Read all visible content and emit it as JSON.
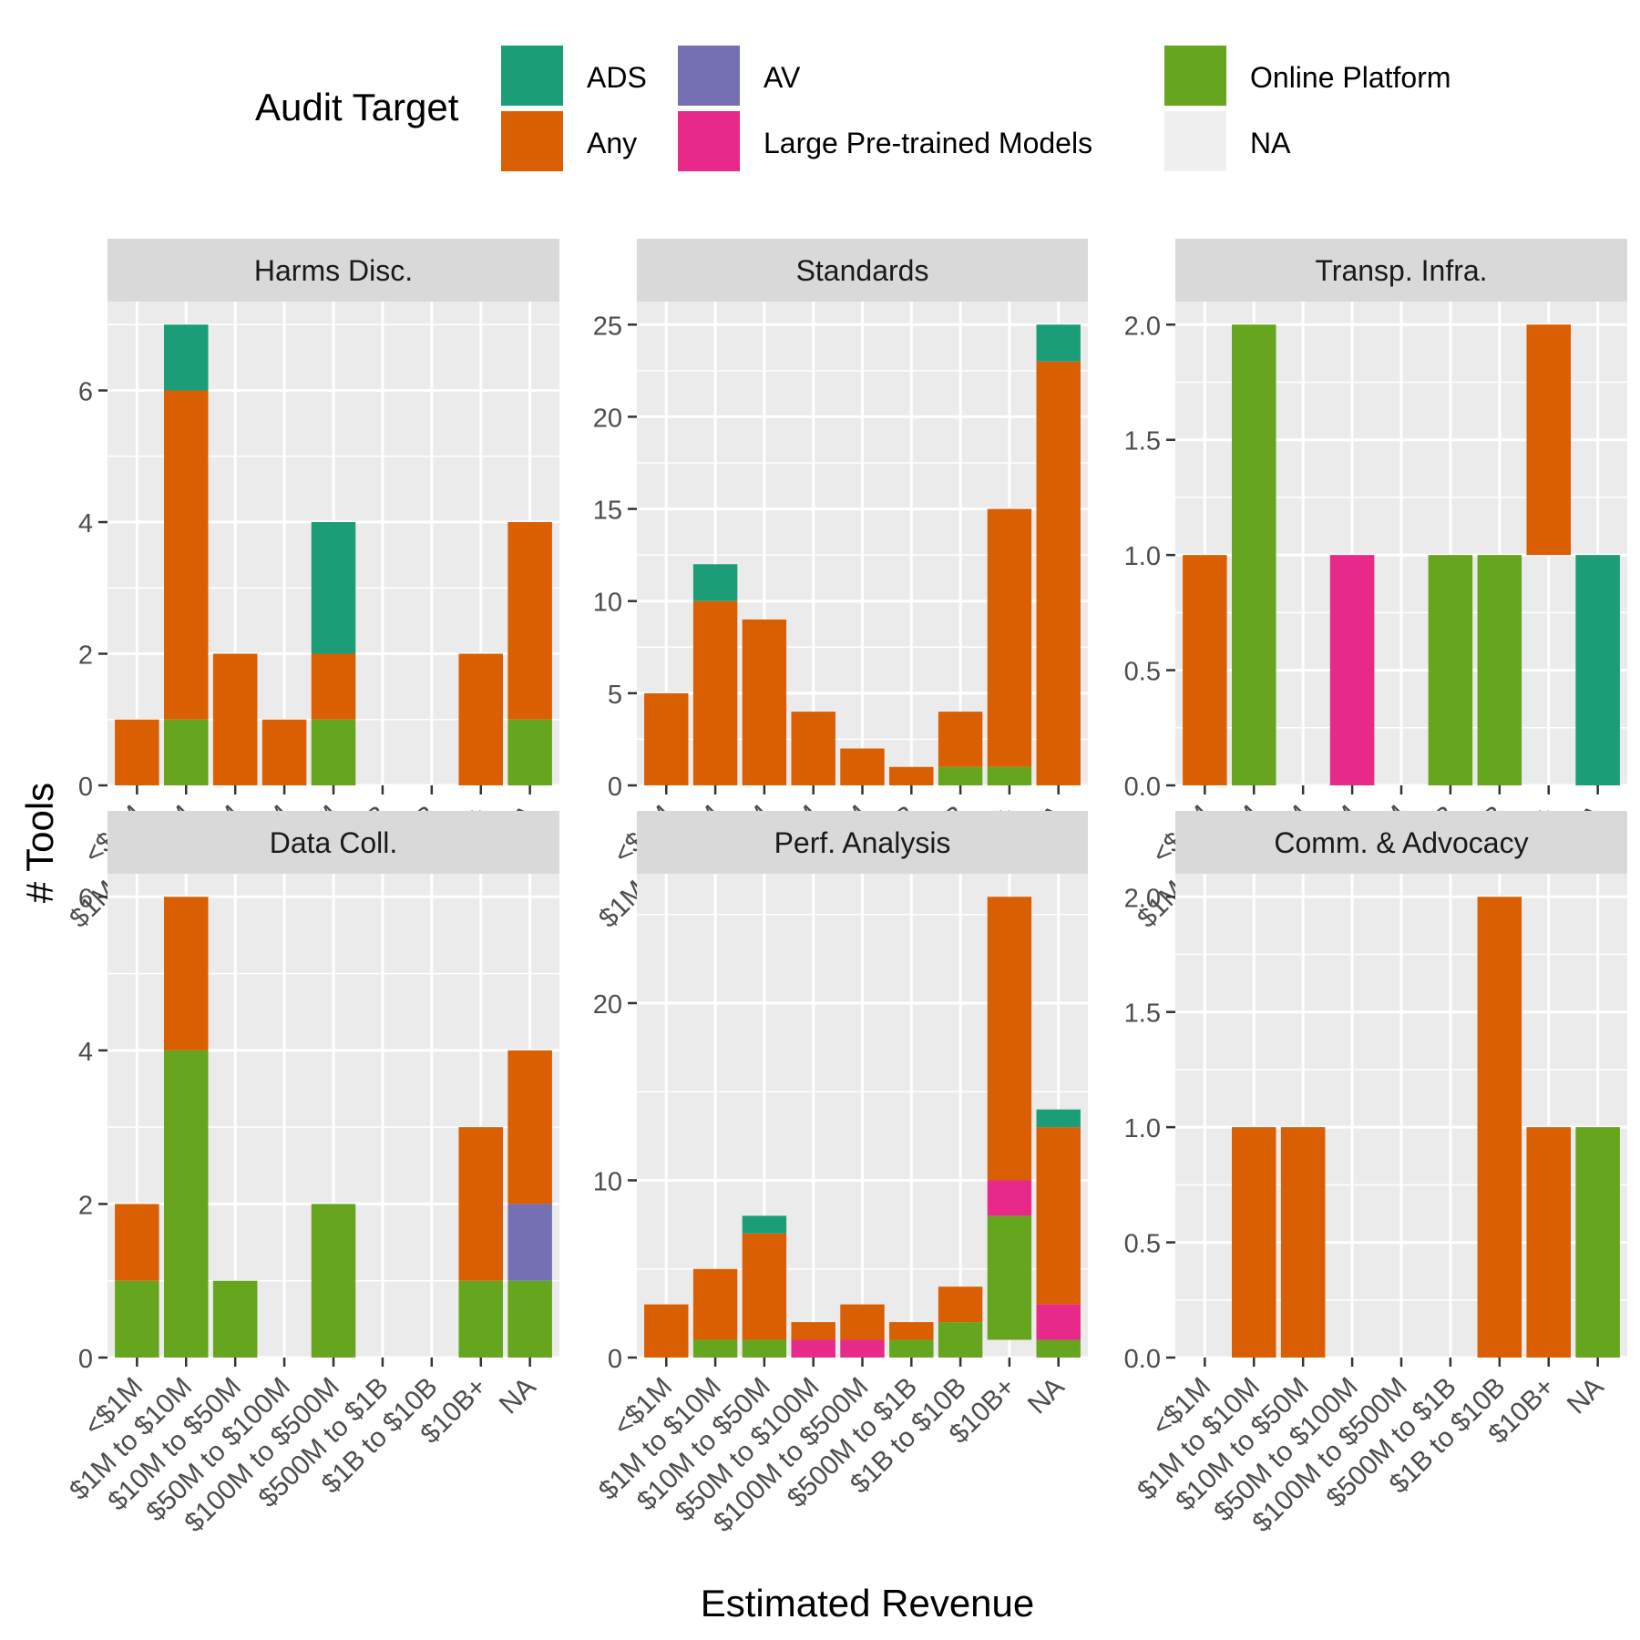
{
  "legend": {
    "title": "Audit Target",
    "entries": [
      {
        "key": "ADS",
        "label": "ADS",
        "color": "#1b9e77"
      },
      {
        "key": "Any",
        "label": "Any",
        "color": "#d95f02"
      },
      {
        "key": "AV",
        "label": "AV",
        "color": "#7570b3"
      },
      {
        "key": "LPM",
        "label": "Large Pre-trained Models",
        "color": "#e7298a"
      },
      {
        "key": "OP",
        "label": "Online Platform",
        "color": "#66a61e"
      },
      {
        "key": "NA",
        "label": "NA",
        "color": "#f0f0f0"
      }
    ]
  },
  "chart_data": {
    "type": "bar",
    "stacked": true,
    "xlabel": "Estimated Revenue",
    "ylabel": "# Tools",
    "grid": true,
    "legend_position": "top",
    "categories": [
      "<$1M",
      "$1M to $10M",
      "$10M to $50M",
      "$50M to $100M",
      "$100M to $500M",
      "$500M to $1B",
      "$1B to $10B",
      "$10B+",
      "NA"
    ],
    "series_order": [
      "OP",
      "LPM",
      "AV",
      "Any",
      "ADS"
    ],
    "panels": [
      {
        "title": "Harms Disc.",
        "ylim": [
          0,
          7.35
        ],
        "yticks": [
          0,
          2,
          4,
          6
        ],
        "ytick_labels": [
          "0",
          "2",
          "4",
          "6"
        ],
        "values": {
          "OP": [
            0,
            1,
            0,
            0,
            1,
            0,
            0,
            0,
            1
          ],
          "LPM": [
            0,
            0,
            0,
            0,
            0,
            0,
            0,
            0,
            0
          ],
          "AV": [
            0,
            0,
            0,
            0,
            0,
            0,
            0,
            0,
            0
          ],
          "Any": [
            1,
            5,
            2,
            1,
            1,
            0,
            0,
            2,
            3
          ],
          "ADS": [
            0,
            1,
            0,
            0,
            2,
            0,
            0,
            0,
            0
          ]
        }
      },
      {
        "title": "Standards",
        "ylim": [
          0,
          26.25
        ],
        "yticks": [
          0,
          5,
          10,
          15,
          20,
          25
        ],
        "ytick_labels": [
          "0",
          "5",
          "10",
          "15",
          "20",
          "25"
        ],
        "values": {
          "OP": [
            0,
            0,
            0,
            0,
            0,
            0,
            1,
            1,
            0
          ],
          "LPM": [
            0,
            0,
            0,
            0,
            0,
            0,
            0,
            0,
            0
          ],
          "AV": [
            0,
            0,
            0,
            0,
            0,
            0,
            0,
            0,
            0
          ],
          "Any": [
            5,
            10,
            9,
            4,
            2,
            1,
            3,
            14,
            23
          ],
          "ADS": [
            0,
            2,
            0,
            0,
            0,
            0,
            0,
            0,
            2
          ]
        }
      },
      {
        "title": "Transp. Infra.",
        "ylim": [
          0,
          2.1
        ],
        "yticks": [
          0,
          0.5,
          1,
          1.5,
          2
        ],
        "ytick_labels": [
          "0.0",
          "0.5",
          "1.0",
          "1.5",
          "2.0"
        ],
        "values": {
          "OP": [
            0,
            2,
            0,
            0,
            0,
            1,
            1,
            0,
            0
          ],
          "LPM": [
            0,
            0,
            0,
            1,
            0,
            0,
            0,
            0,
            0
          ],
          "AV": [
            0,
            0,
            0,
            0,
            0,
            0,
            0,
            0,
            0
          ],
          "Any": [
            1,
            0,
            0,
            0,
            0,
            0,
            0,
            1,
            0
          ],
          "ADS": [
            0,
            0,
            0,
            0,
            0,
            0,
            0,
            0,
            1
          ]
        },
        "bases": [
          0,
          0,
          0,
          0,
          0,
          0,
          0,
          1,
          0
        ]
      },
      {
        "title": "Data Coll.",
        "ylim": [
          0,
          6.3
        ],
        "yticks": [
          0,
          2,
          4,
          6
        ],
        "ytick_labels": [
          "0",
          "2",
          "4",
          "6"
        ],
        "values": {
          "OP": [
            1,
            4,
            1,
            0,
            2,
            0,
            0,
            1,
            1
          ],
          "LPM": [
            0,
            0,
            0,
            0,
            0,
            0,
            0,
            0,
            0
          ],
          "AV": [
            0,
            0,
            0,
            0,
            0,
            0,
            0,
            0,
            1
          ],
          "Any": [
            1,
            2,
            0,
            0,
            0,
            0,
            0,
            2,
            2
          ],
          "ADS": [
            0,
            0,
            0,
            0,
            0,
            0,
            0,
            0,
            0
          ]
        }
      },
      {
        "title": "Perf. Analysis",
        "ylim": [
          0,
          27.3
        ],
        "yticks": [
          0,
          10,
          20
        ],
        "ytick_labels": [
          "0",
          "10",
          "20"
        ],
        "values": {
          "OP": [
            0,
            1,
            1,
            0,
            0,
            1,
            2,
            7,
            1
          ],
          "LPM": [
            0,
            0,
            0,
            1,
            1,
            0,
            0,
            2,
            2
          ],
          "AV": [
            0,
            0,
            0,
            0,
            0,
            0,
            0,
            0,
            0
          ],
          "Any": [
            3,
            4,
            6,
            1,
            2,
            1,
            2,
            16,
            10
          ],
          "ADS": [
            0,
            0,
            1,
            0,
            0,
            0,
            0,
            0,
            1
          ]
        },
        "bases": [
          0,
          0,
          0,
          0,
          0,
          0,
          0,
          1,
          0
        ]
      },
      {
        "title": "Comm. & Advocacy",
        "ylim": [
          0,
          2.1
        ],
        "yticks": [
          0,
          0.5,
          1,
          1.5,
          2
        ],
        "ytick_labels": [
          "0.0",
          "0.5",
          "1.0",
          "1.5",
          "2.0"
        ],
        "values": {
          "OP": [
            0,
            0,
            0,
            0,
            0,
            0,
            0,
            0,
            1
          ],
          "LPM": [
            0,
            0,
            0,
            0,
            0,
            0,
            0,
            0,
            0
          ],
          "AV": [
            0,
            0,
            0,
            0,
            0,
            0,
            0,
            0,
            0
          ],
          "Any": [
            0,
            1,
            1,
            0,
            0,
            0,
            2,
            1,
            0
          ],
          "ADS": [
            0,
            0,
            0,
            0,
            0,
            0,
            0,
            0,
            0
          ]
        }
      }
    ]
  }
}
